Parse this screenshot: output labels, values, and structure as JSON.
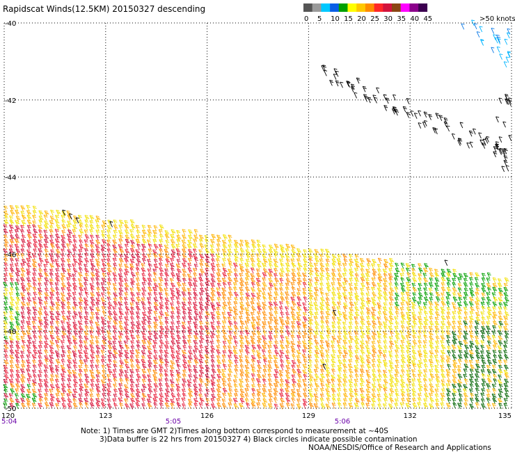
{
  "title": "Rapidscat Winds(12.5KM) 20150327 descending",
  "colorbar": {
    "unit_label": ">50 knots",
    "ticks": [
      "0",
      "5",
      "10",
      "15",
      "20",
      "25",
      "30",
      "35",
      "40",
      "45"
    ],
    "colors": [
      "#555555",
      "#9a9a9a",
      "#00c8ff",
      "#0a5ee6",
      "#00a000",
      "#ffff00",
      "#ffc800",
      "#ff8c00",
      "#ff2828",
      "#d2143c",
      "#8b4513",
      "#ff00ff",
      "#8b008b",
      "#3c0050"
    ]
  },
  "notes": {
    "line1": "Note: 1) Times are GMT 2)Times along bottom correspond to measurement at ~40S",
    "line2": "3)Data buffer is 22 hrs from 20150327 4) Black circles indicate possible contamination",
    "credit": "NOAA/NESDIS/Office of Research and Applications"
  },
  "chart_data": {
    "type": "wind barb map",
    "x_ticks": [
      "120",
      "123",
      "126",
      "129",
      "132",
      "135"
    ],
    "y_ticks": [
      "-40",
      "-42",
      "-44",
      "-46",
      "-48",
      "-50"
    ],
    "xlim": [
      120,
      135
    ],
    "ylim": [
      -50,
      -40
    ],
    "grid": true,
    "time_labels": [
      {
        "lon": 120,
        "time": "5:04"
      },
      {
        "lon": 125,
        "time": "5:05"
      },
      {
        "lon": 130,
        "time": "5:06"
      }
    ],
    "wind_regions": [
      {
        "name": "NE corner swath",
        "lon_range": [
          133.2,
          135
        ],
        "lat_range": [
          -41.2,
          -40
        ],
        "speed_knots": "5-15"
      },
      {
        "name": "diagonal black swath",
        "lon_range": [
          129.4,
          135
        ],
        "lat_range": [
          -44.2,
          -41.3
        ],
        "speed_knots": "black (contaminated)"
      },
      {
        "name": "main swath (west)",
        "lon_range": [
          120,
          126
        ],
        "lat_range": [
          -50,
          -44.8
        ],
        "speed_knots": "25-35"
      },
      {
        "name": "main swath (east)",
        "lon_range": [
          126,
          135
        ],
        "lat_range": [
          -50,
          -46.5
        ],
        "speed_knots": "15-30"
      }
    ]
  }
}
